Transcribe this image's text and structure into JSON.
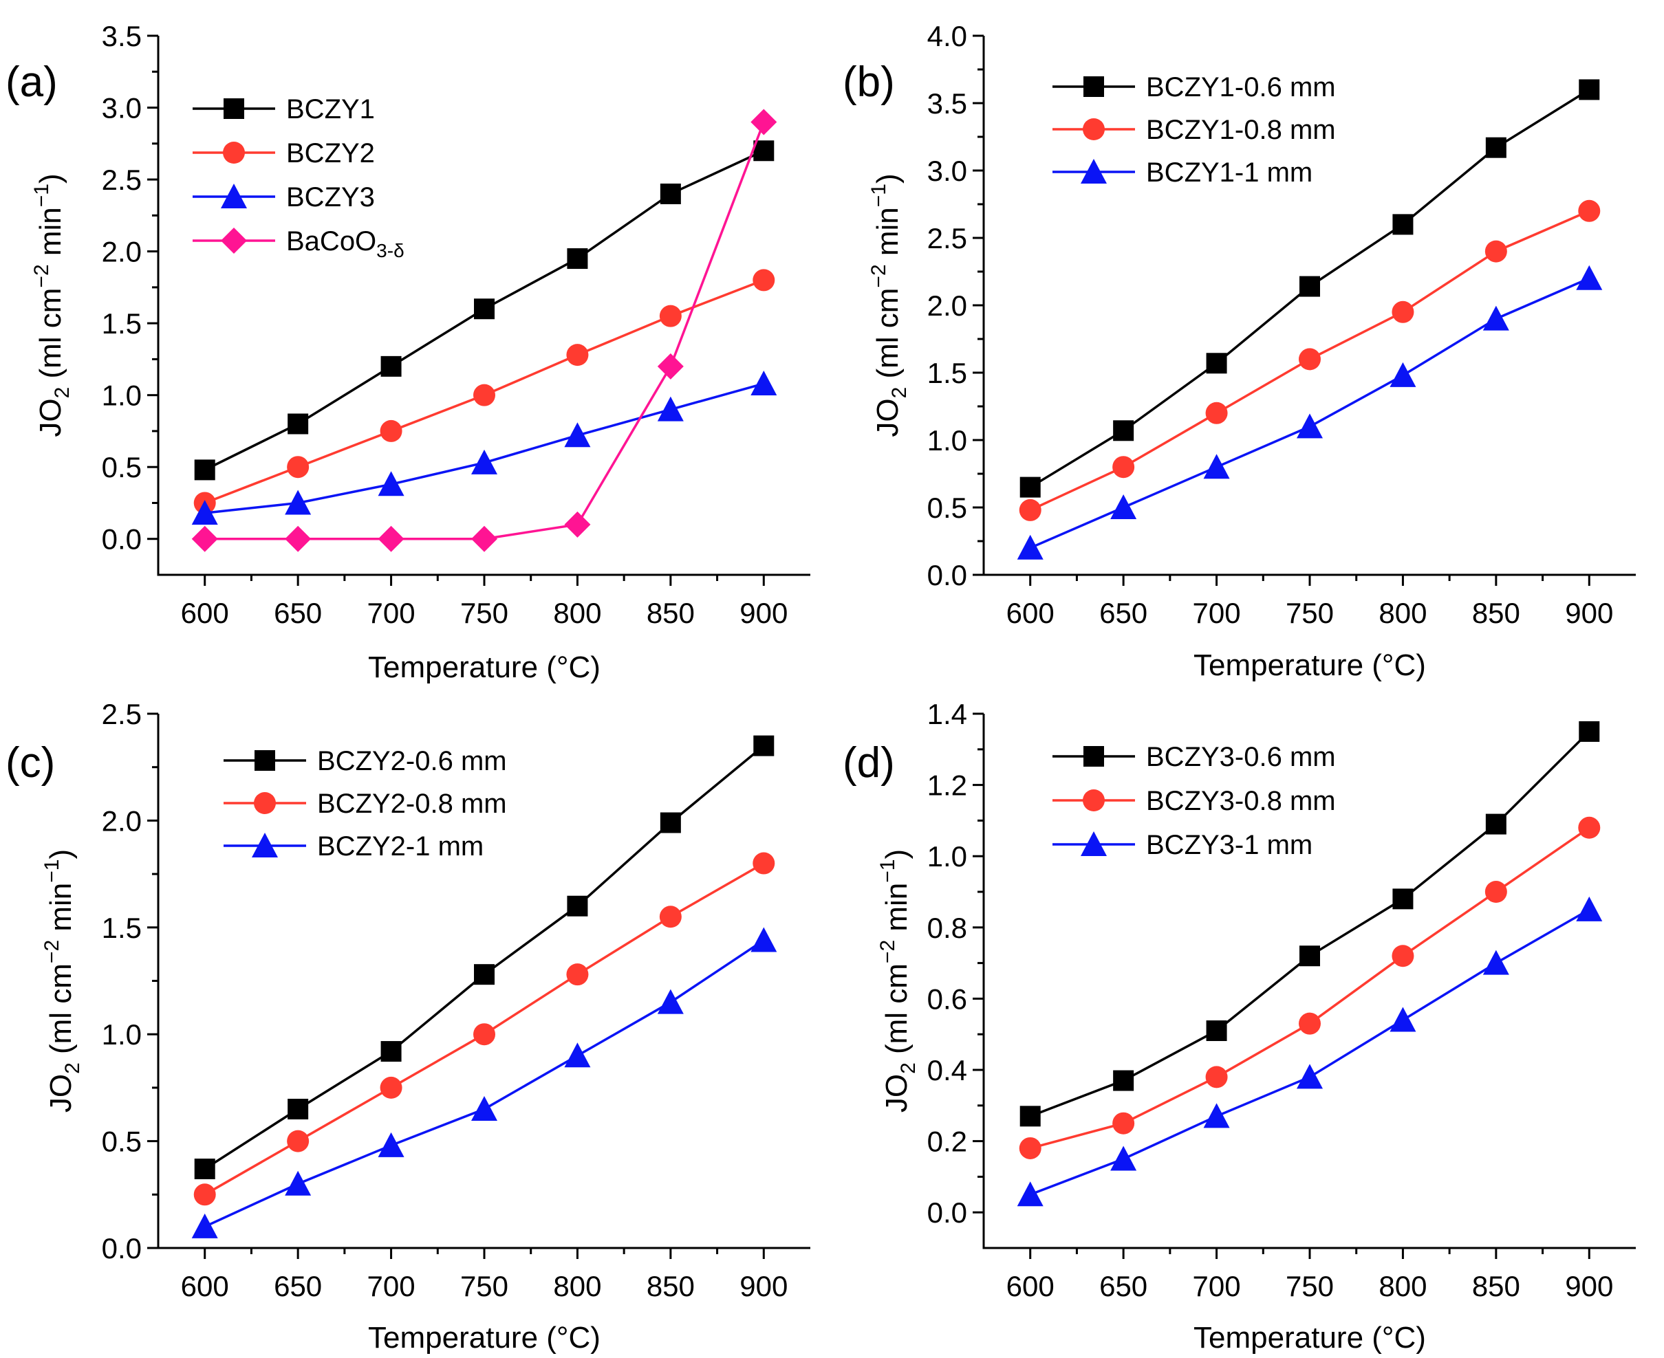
{
  "figure": {
    "type": "multi-panel line chart"
  },
  "chart_data": [
    {
      "panel": "(a)",
      "type": "line",
      "xlabel": "Temperature (°C)",
      "ylabel_main": "JO",
      "ylabel_sub": "2",
      "ylabel_units_a": " (ml cm",
      "ylabel_exp_a": "−2",
      "ylabel_units_b": " min",
      "ylabel_exp_b": "−1",
      "ylabel_close": ")",
      "xlim": [
        575,
        925
      ],
      "ylim": [
        -0.25,
        3.5
      ],
      "xticks": [
        600,
        650,
        700,
        750,
        800,
        850,
        900
      ],
      "yticks": [
        0.0,
        0.5,
        1.0,
        1.5,
        2.0,
        2.5,
        3.0,
        3.5
      ],
      "ytick_labels": [
        "0.0",
        "0.5",
        "1.0",
        "1.5",
        "2.0",
        "2.5",
        "3.0",
        "3.5"
      ],
      "x": [
        600,
        650,
        700,
        750,
        800,
        850,
        900
      ],
      "series": [
        {
          "name": "BCZY1",
          "name_sub": "",
          "color": "#000000",
          "marker": "square",
          "values": [
            0.48,
            0.8,
            1.2,
            1.6,
            1.95,
            2.4,
            2.7
          ]
        },
        {
          "name": "BCZY2",
          "name_sub": "",
          "color": "#ff3b30",
          "marker": "circle",
          "values": [
            0.25,
            0.5,
            0.75,
            1.0,
            1.28,
            1.55,
            1.8
          ]
        },
        {
          "name": "BCZY3",
          "name_sub": "",
          "color": "#0a14f5",
          "marker": "triangle",
          "values": [
            0.18,
            0.25,
            0.38,
            0.53,
            0.72,
            0.9,
            1.08
          ]
        },
        {
          "name": "BaCoO",
          "name_sub": "3-δ",
          "color": "#ff1493",
          "marker": "diamond",
          "values": [
            0.0,
            0.0,
            0.0,
            0.0,
            0.1,
            1.2,
            2.9
          ]
        }
      ]
    },
    {
      "panel": "(b)",
      "type": "line",
      "xlabel": "Temperature (°C)",
      "ylabel_main": "JO",
      "ylabel_sub": "2",
      "ylabel_units_a": " (ml cm",
      "ylabel_exp_a": "−2",
      "ylabel_units_b": " min",
      "ylabel_exp_b": "−1",
      "ylabel_close": ")",
      "xlim": [
        575,
        925
      ],
      "ylim": [
        0.0,
        4.0
      ],
      "xticks": [
        600,
        650,
        700,
        750,
        800,
        850,
        900
      ],
      "yticks": [
        0.0,
        0.5,
        1.0,
        1.5,
        2.0,
        2.5,
        3.0,
        3.5,
        4.0
      ],
      "ytick_labels": [
        "0.0",
        "0.5",
        "1.0",
        "1.5",
        "2.0",
        "2.5",
        "3.0",
        "3.5",
        "4.0"
      ],
      "x": [
        600,
        650,
        700,
        750,
        800,
        850,
        900
      ],
      "series": [
        {
          "name": "BCZY1-0.6 mm",
          "name_sub": "",
          "color": "#000000",
          "marker": "square",
          "values": [
            0.65,
            1.07,
            1.57,
            2.14,
            2.6,
            3.17,
            3.6
          ]
        },
        {
          "name": "BCZY1-0.8 mm",
          "name_sub": "",
          "color": "#ff3b30",
          "marker": "circle",
          "values": [
            0.48,
            0.8,
            1.2,
            1.6,
            1.95,
            2.4,
            2.7
          ]
        },
        {
          "name": "BCZY1-1 mm",
          "name_sub": "",
          "color": "#0a14f5",
          "marker": "triangle",
          "values": [
            0.2,
            0.5,
            0.8,
            1.1,
            1.48,
            1.9,
            2.2
          ]
        }
      ]
    },
    {
      "panel": "(c)",
      "type": "line",
      "xlabel": "Temperature (°C)",
      "ylabel_main": "JO",
      "ylabel_sub": "2",
      "ylabel_units_a": " (ml cm",
      "ylabel_exp_a": "−2",
      "ylabel_units_b": " min",
      "ylabel_exp_b": "−1",
      "ylabel_close": ")",
      "xlim": [
        575,
        925
      ],
      "ylim": [
        0.0,
        2.5
      ],
      "xticks": [
        600,
        650,
        700,
        750,
        800,
        850,
        900
      ],
      "yticks": [
        0.0,
        0.5,
        1.0,
        1.5,
        2.0,
        2.5
      ],
      "ytick_labels": [
        "0.0",
        "0.5",
        "1.0",
        "1.5",
        "2.0",
        "2.5"
      ],
      "x": [
        600,
        650,
        700,
        750,
        800,
        850,
        900
      ],
      "series": [
        {
          "name": "BCZY2-0.6 mm",
          "name_sub": "",
          "color": "#000000",
          "marker": "square",
          "values": [
            0.37,
            0.65,
            0.92,
            1.28,
            1.6,
            1.99,
            2.35
          ]
        },
        {
          "name": "BCZY2-0.8 mm",
          "name_sub": "",
          "color": "#ff3b30",
          "marker": "circle",
          "values": [
            0.25,
            0.5,
            0.75,
            1.0,
            1.28,
            1.55,
            1.8
          ]
        },
        {
          "name": "BCZY2-1 mm",
          "name_sub": "",
          "color": "#0a14f5",
          "marker": "triangle",
          "values": [
            0.1,
            0.3,
            0.48,
            0.65,
            0.9,
            1.15,
            1.44
          ]
        }
      ]
    },
    {
      "panel": "(d)",
      "type": "line",
      "xlabel": "Temperature (°C)",
      "ylabel_main": "JO",
      "ylabel_sub": "2",
      "ylabel_units_a": " (ml cm",
      "ylabel_exp_a": "−2",
      "ylabel_units_b": " min",
      "ylabel_exp_b": "−1",
      "ylabel_close": ")",
      "xlim": [
        575,
        925
      ],
      "ylim": [
        -0.1,
        1.4
      ],
      "xticks": [
        600,
        650,
        700,
        750,
        800,
        850,
        900
      ],
      "yticks": [
        0.0,
        0.2,
        0.4,
        0.6,
        0.8,
        1.0,
        1.2,
        1.4
      ],
      "ytick_labels": [
        "0.0",
        "0.2",
        "0.4",
        "0.6",
        "0.8",
        "1.0",
        "1.2",
        "1.4"
      ],
      "x": [
        600,
        650,
        700,
        750,
        800,
        850,
        900
      ],
      "series": [
        {
          "name": "BCZY3-0.6 mm",
          "name_sub": "",
          "color": "#000000",
          "marker": "square",
          "values": [
            0.27,
            0.37,
            0.51,
            0.72,
            0.88,
            1.09,
            1.35
          ]
        },
        {
          "name": "BCZY3-0.8 mm",
          "name_sub": "",
          "color": "#ff3b30",
          "marker": "circle",
          "values": [
            0.18,
            0.25,
            0.38,
            0.53,
            0.72,
            0.9,
            1.08
          ]
        },
        {
          "name": "BCZY3-1 mm",
          "name_sub": "",
          "color": "#0a14f5",
          "marker": "triangle",
          "values": [
            0.05,
            0.15,
            0.27,
            0.38,
            0.54,
            0.7,
            0.85
          ]
        }
      ]
    }
  ]
}
